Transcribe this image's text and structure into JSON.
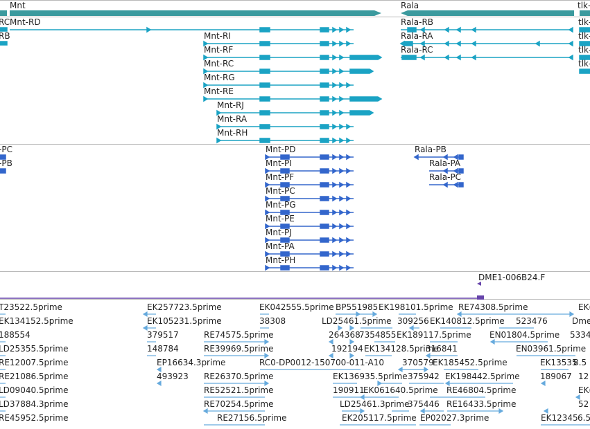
{
  "genes": {
    "mnt": "Mnt",
    "rala": "Rala",
    "tlk": "tlk-"
  },
  "transcripts": {
    "rc_left": "RC",
    "rb_left": "RB",
    "mnt_rd": "Mnt-RD",
    "mnt_ri": "Mnt-RI",
    "mnt_rf": "Mnt-RF",
    "mnt_rc": "Mnt-RC",
    "mnt_rg": "Mnt-RG",
    "mnt_re": "Mnt-RE",
    "mnt_rj": "Mnt-RJ",
    "mnt_ra": "Mnt-RA",
    "mnt_rh": "Mnt-RH",
    "rala_rb": "Rala-RB",
    "rala_ra": "Rala-RA",
    "rala_rc": "Rala-RC",
    "tlk_1": "tlk-",
    "tlk_2": "tlk-",
    "tlk_3": "tlk-",
    "tlk_4": "tlk-"
  },
  "proteins": {
    "pc_left": "-PC",
    "pb_left": "-PB",
    "mnt_pd": "Mnt-PD",
    "mnt_pi": "Mnt-PI",
    "mnt_pf": "Mnt-PF",
    "mnt_pc": "Mnt-PC",
    "mnt_pg": "Mnt-PG",
    "mnt_pe": "Mnt-PE",
    "mnt_pj": "Mnt-PJ",
    "mnt_pa": "Mnt-PA",
    "mnt_ph": "Mnt-PH",
    "rala_pb": "Rala-PB",
    "rala_pa": "Rala-PA",
    "rala_pc": "Rala-PC"
  },
  "clone": {
    "label": "DME1-006B24.F"
  },
  "ests": {
    "col1": [
      "T23522.5prime",
      "EK134152.5prime",
      "188554",
      "LD25355.5prime",
      "RE12007.5prime",
      "RE21086.5prime",
      "LD09040.5prime",
      "LD37884.3prime",
      "RE45952.5prime"
    ],
    "c2_1": "EK257723.5prime",
    "c2_2": "EK105231.5prime",
    "c2_3": "379517",
    "c2_4": "148784",
    "c2_5": "EP16634.3prime",
    "c2_6": "493923",
    "c3_1": "RE74575.5prime",
    "c3_2": "RE39969.5prime",
    "c3_3": "RE26370.5prime",
    "c3_4": "RE52521.5prime",
    "c3_5": "RE70254.5prime",
    "c3_6": "RE27156.5prime",
    "c4_1": "EK042555.5prime",
    "c4_2": "38308",
    "c4_3": "RC0-DP0012-150700-011-A10",
    "c5_1": "BP551985",
    "c5_2": "LD25461.5prime",
    "c5_3": "264368",
    "c5_4": "7354855",
    "c5_5": "192194",
    "c5_6": "EK134128.5prime",
    "c5_7": "EK136935.5prime",
    "c5_8": "190911",
    "c5_9": "EK061640.5prime",
    "c5_10": "LD25461.3prime",
    "c5_11": "EK205117.5prime",
    "c6_1": "EK198101.5prime",
    "c6_2": "309256",
    "c6_3": "EK140812.5prime",
    "c6_4": "EK189117.5prime",
    "c6_5": "316841",
    "c6_6": "370579",
    "c6_7": "EK185452.5prime",
    "c6_8": "375942",
    "c6_9": "375446",
    "c6_10": "EP02027.3prime",
    "c7_1": "RE74308.5prime",
    "c7_2": "523476",
    "c7_3": "EN01804.5prime",
    "c7_4": "EN03961.5prime",
    "c7_5": "EK198442.5prime",
    "c7_6": "RE46804.5prime",
    "c7_7": "RE16433.5prime",
    "c8_1": "EK(",
    "c8_2": "Dme",
    "c8_3": "5334",
    "c8_4": "EK13535",
    "c8_5": "8.5",
    "c8_6": "189067",
    "c8_7": "12",
    "c8_8": "EK(",
    "c8_9": "52",
    "c8_10": "EK12345",
    "c8_11": "6.5prime"
  },
  "colors": {
    "gene_teal": "#3b9a9e",
    "transcript": "#1ba3c4",
    "protein": "#3366cc",
    "est": "#66aadd",
    "clone": "#6644aa"
  }
}
